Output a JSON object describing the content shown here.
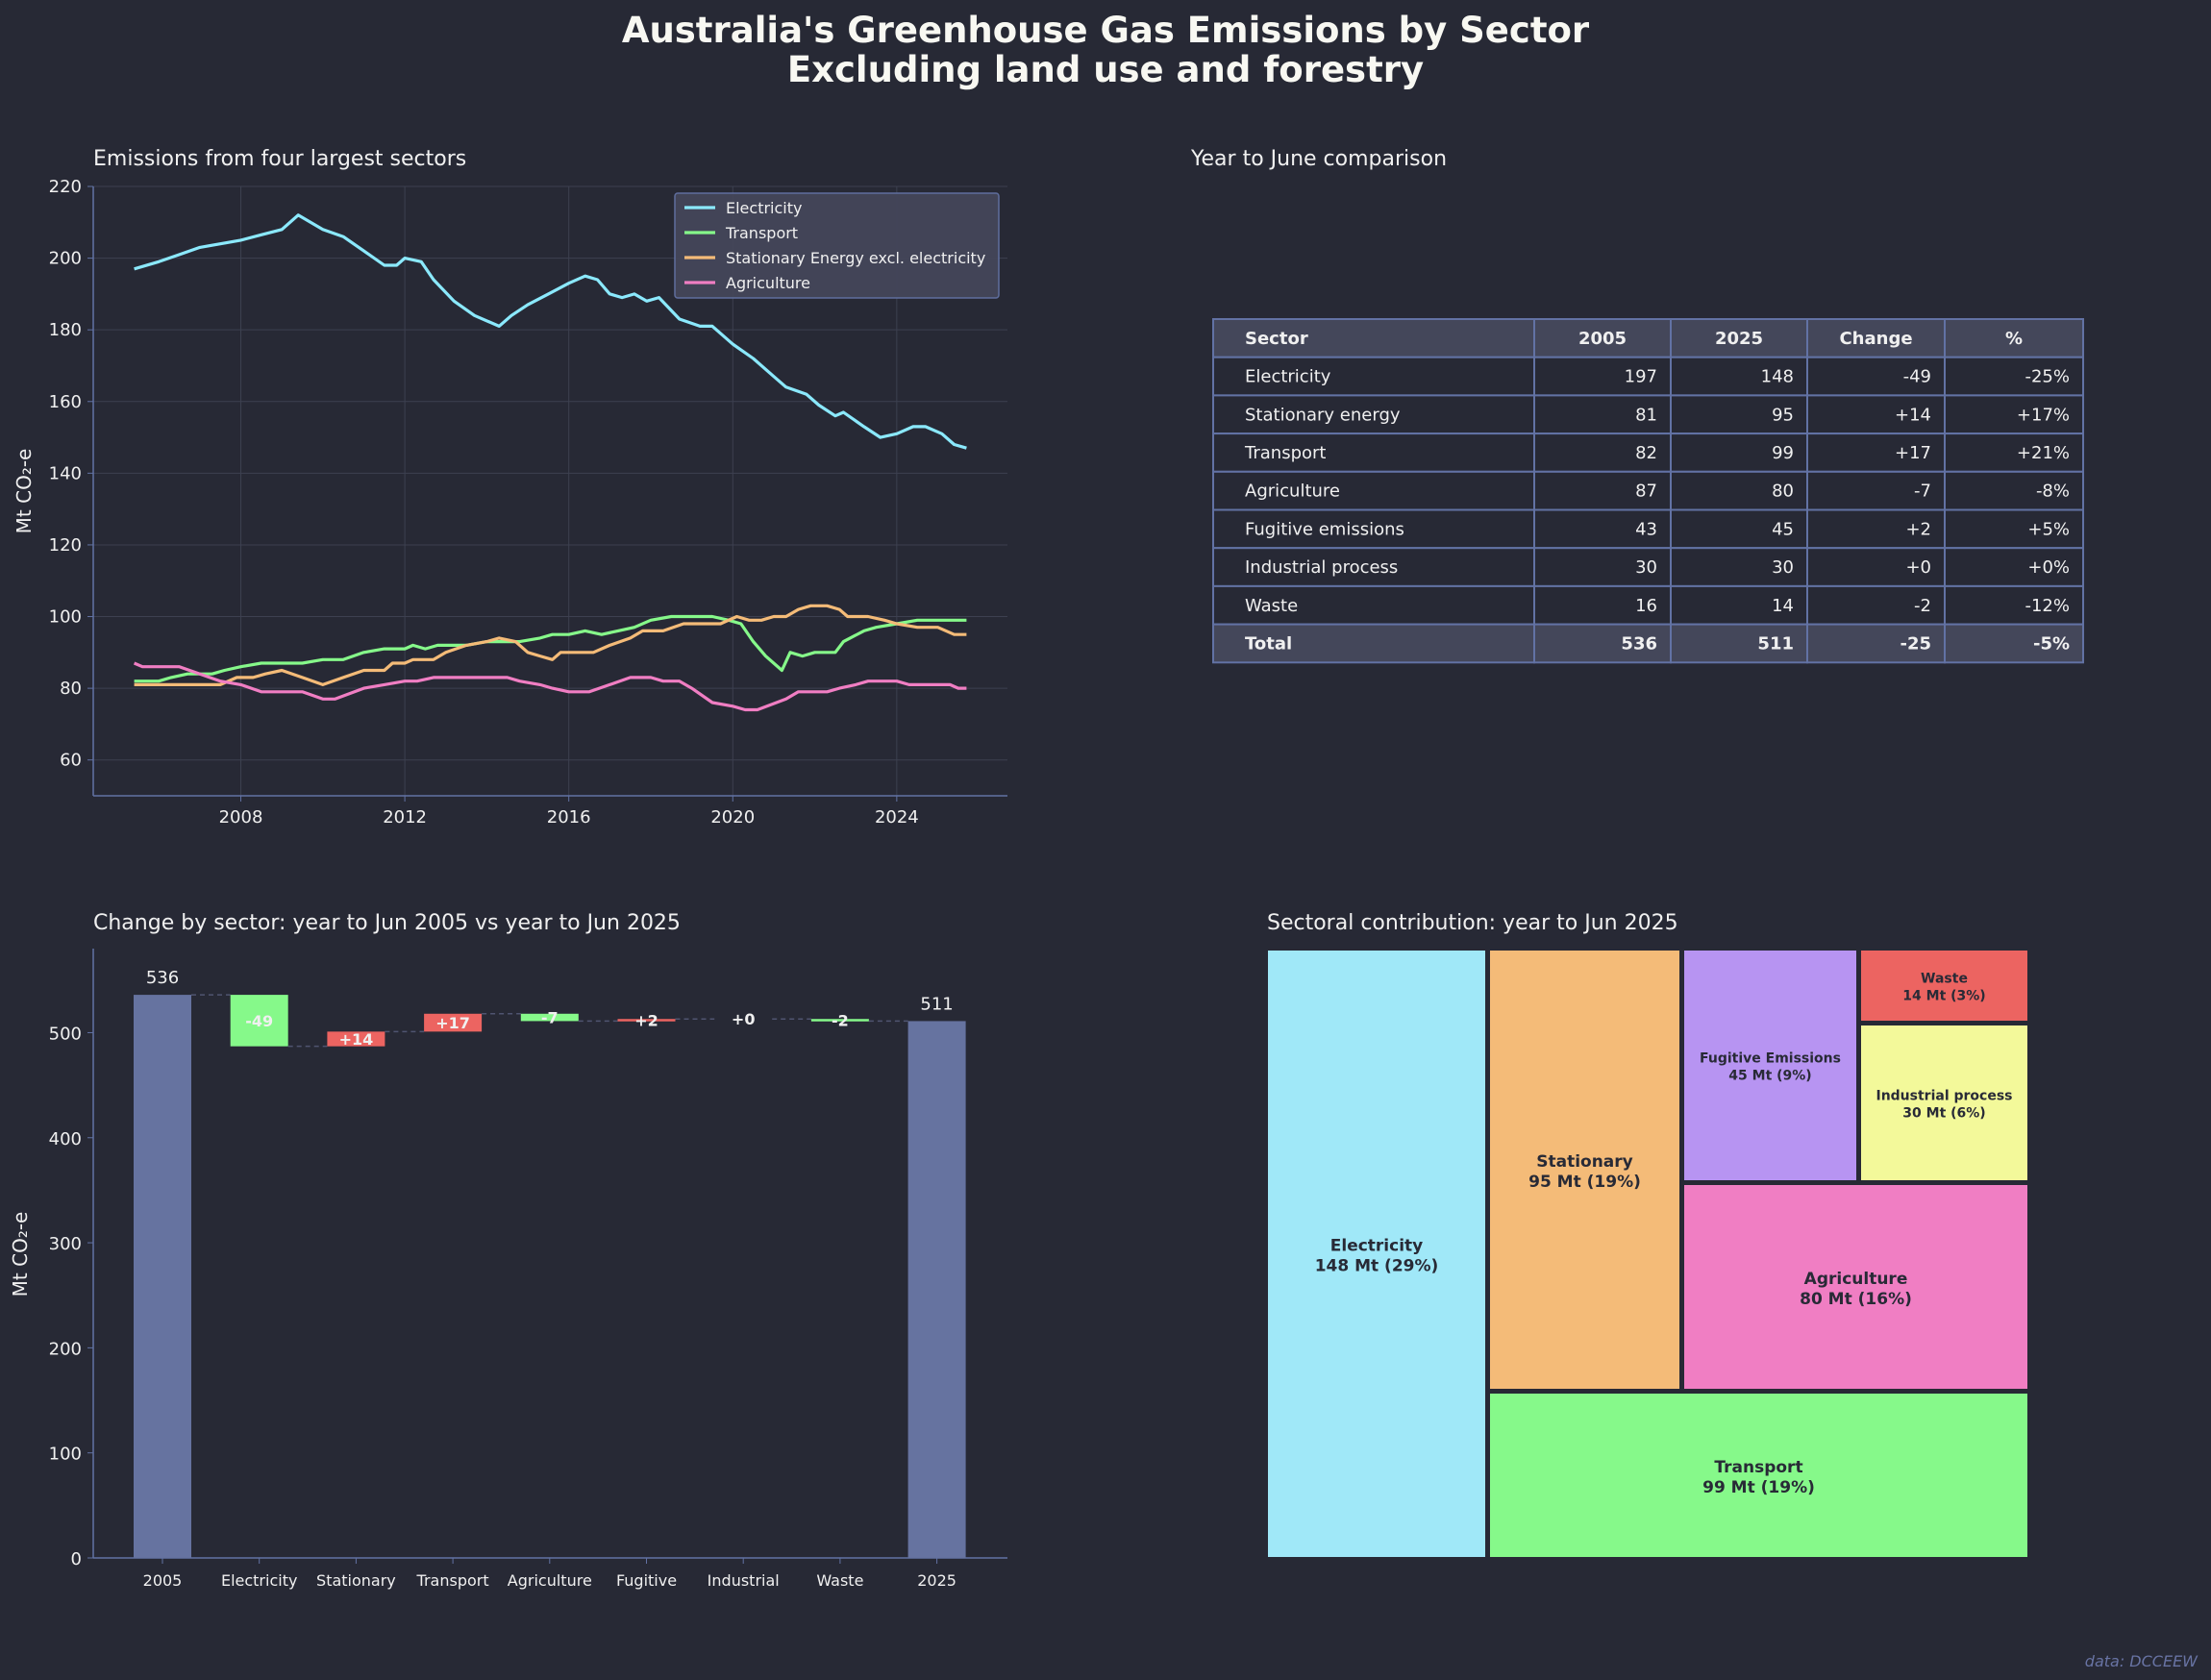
{
  "title": {
    "line1": "Australia's Greenhouse Gas Emissions by Sector",
    "line2": "Excluding land use and forestry"
  },
  "credit": "data: DCCEEW",
  "colors": {
    "background": "#272935",
    "electricity": "#8be9fd",
    "transport": "#86f98a",
    "stationary": "#f4bb78",
    "agriculture": "#f07ec3",
    "fugitive": "#b794f2",
    "waste": "#ec6461",
    "industrial": "#f3f99a",
    "total_bar": "#6673a0",
    "increase": "#ec6461",
    "decrease": "#86f98a",
    "axis": "#6272a4",
    "grid": "#3d4050"
  },
  "chart_data": [
    {
      "type": "line",
      "title": "Emissions from four largest sectors",
      "ylabel": "Mt CO₂-e",
      "xlabel": "",
      "xlim": [
        2004.4,
        2026.7
      ],
      "ylim": [
        50,
        220
      ],
      "xticks": [
        2008,
        2012,
        2016,
        2020,
        2024
      ],
      "yticks": [
        60,
        80,
        100,
        120,
        140,
        160,
        180,
        200,
        220
      ],
      "grid": true,
      "legend": "top-right",
      "series": [
        {
          "name": "Electricity",
          "color": "#8be9fd",
          "points": [
            [
              2005.4,
              197
            ],
            [
              2006,
              199
            ],
            [
              2006.5,
              201
            ],
            [
              2007,
              203
            ],
            [
              2007.5,
              204
            ],
            [
              2008,
              205
            ],
            [
              2008.5,
              206.5
            ],
            [
              2009,
              208
            ],
            [
              2009.4,
              212
            ],
            [
              2010,
              208
            ],
            [
              2010.5,
              206
            ],
            [
              2011,
              202
            ],
            [
              2011.5,
              198
            ],
            [
              2011.8,
              198
            ],
            [
              2012,
              200
            ],
            [
              2012.4,
              199
            ],
            [
              2012.7,
              194
            ],
            [
              2013.2,
              188
            ],
            [
              2013.7,
              184
            ],
            [
              2014.3,
              181
            ],
            [
              2014.6,
              184
            ],
            [
              2015,
              187
            ],
            [
              2015.5,
              190
            ],
            [
              2016,
              193
            ],
            [
              2016.4,
              195
            ],
            [
              2016.7,
              194
            ],
            [
              2017,
              190
            ],
            [
              2017.3,
              189
            ],
            [
              2017.6,
              190
            ],
            [
              2017.9,
              188
            ],
            [
              2018.2,
              189
            ],
            [
              2018.7,
              183
            ],
            [
              2019.2,
              181
            ],
            [
              2019.5,
              181
            ],
            [
              2020,
              176
            ],
            [
              2020.5,
              172
            ],
            [
              2021,
              167
            ],
            [
              2021.3,
              164
            ],
            [
              2021.8,
              162
            ],
            [
              2022.1,
              159
            ],
            [
              2022.5,
              156
            ],
            [
              2022.7,
              157
            ],
            [
              2023.2,
              153
            ],
            [
              2023.6,
              150
            ],
            [
              2024,
              151
            ],
            [
              2024.4,
              153
            ],
            [
              2024.7,
              153
            ],
            [
              2025.1,
              151
            ],
            [
              2025.4,
              148
            ],
            [
              2025.7,
              147
            ]
          ]
        },
        {
          "name": "Transport",
          "color": "#86f98a",
          "points": [
            [
              2005.4,
              82
            ],
            [
              2006,
              82
            ],
            [
              2006.3,
              83
            ],
            [
              2006.7,
              84
            ],
            [
              2007.3,
              84
            ],
            [
              2007.6,
              85
            ],
            [
              2008,
              86
            ],
            [
              2008.5,
              87
            ],
            [
              2009.5,
              87
            ],
            [
              2010,
              88
            ],
            [
              2010.5,
              88
            ],
            [
              2011,
              90
            ],
            [
              2011.5,
              91
            ],
            [
              2012,
              91
            ],
            [
              2012.2,
              92
            ],
            [
              2012.5,
              91
            ],
            [
              2012.8,
              92
            ],
            [
              2013.5,
              92
            ],
            [
              2014,
              93
            ],
            [
              2014.8,
              93
            ],
            [
              2015.3,
              94
            ],
            [
              2015.6,
              95
            ],
            [
              2016,
              95
            ],
            [
              2016.4,
              96
            ],
            [
              2016.8,
              95
            ],
            [
              2017.2,
              96
            ],
            [
              2017.6,
              97
            ],
            [
              2018,
              99
            ],
            [
              2018.5,
              100
            ],
            [
              2019.5,
              100
            ],
            [
              2019.9,
              99
            ],
            [
              2020.2,
              98
            ],
            [
              2020.5,
              93
            ],
            [
              2020.8,
              89
            ],
            [
              2021.2,
              85
            ],
            [
              2021.4,
              90
            ],
            [
              2021.7,
              89
            ],
            [
              2022,
              90
            ],
            [
              2022.5,
              90
            ],
            [
              2022.7,
              93
            ],
            [
              2023.2,
              96
            ],
            [
              2023.5,
              97
            ],
            [
              2024,
              98
            ],
            [
              2024.5,
              99
            ],
            [
              2025.7,
              99
            ]
          ]
        },
        {
          "name": "Stationary Energy excl. electricity",
          "color": "#f4bb78",
          "points": [
            [
              2005.4,
              81
            ],
            [
              2007.5,
              81
            ],
            [
              2007.9,
              83
            ],
            [
              2008.3,
              83
            ],
            [
              2008.6,
              84
            ],
            [
              2009,
              85
            ],
            [
              2009.5,
              83
            ],
            [
              2010,
              81
            ],
            [
              2010.5,
              83
            ],
            [
              2011,
              85
            ],
            [
              2011.5,
              85
            ],
            [
              2011.7,
              87
            ],
            [
              2012,
              87
            ],
            [
              2012.2,
              88
            ],
            [
              2012.7,
              88
            ],
            [
              2013,
              90
            ],
            [
              2013.5,
              92
            ],
            [
              2014,
              93
            ],
            [
              2014.3,
              94
            ],
            [
              2014.7,
              93
            ],
            [
              2015,
              90
            ],
            [
              2015.3,
              89
            ],
            [
              2015.6,
              88
            ],
            [
              2015.8,
              90
            ],
            [
              2016.6,
              90
            ],
            [
              2017,
              92
            ],
            [
              2017.5,
              94
            ],
            [
              2017.8,
              96
            ],
            [
              2018.3,
              96
            ],
            [
              2018.8,
              98
            ],
            [
              2019.7,
              98
            ],
            [
              2020.1,
              100
            ],
            [
              2020.4,
              99
            ],
            [
              2020.7,
              99
            ],
            [
              2021,
              100
            ],
            [
              2021.3,
              100
            ],
            [
              2021.6,
              102
            ],
            [
              2021.9,
              103
            ],
            [
              2022.3,
              103
            ],
            [
              2022.6,
              102
            ],
            [
              2022.8,
              100
            ],
            [
              2023.3,
              100
            ],
            [
              2023.7,
              99
            ],
            [
              2024,
              98
            ],
            [
              2024.5,
              97
            ],
            [
              2025,
              97
            ],
            [
              2025.4,
              95
            ],
            [
              2025.7,
              95
            ]
          ]
        },
        {
          "name": "Agriculture",
          "color": "#f07ec3",
          "points": [
            [
              2005.4,
              87
            ],
            [
              2005.6,
              86
            ],
            [
              2006.5,
              86
            ],
            [
              2007,
              84
            ],
            [
              2007.5,
              82
            ],
            [
              2008,
              81
            ],
            [
              2008.5,
              79
            ],
            [
              2009.5,
              79
            ],
            [
              2010,
              77
            ],
            [
              2010.3,
              77
            ],
            [
              2011,
              80
            ],
            [
              2011.5,
              81
            ],
            [
              2012,
              82
            ],
            [
              2012.3,
              82
            ],
            [
              2012.7,
              83
            ],
            [
              2014.5,
              83
            ],
            [
              2014.8,
              82
            ],
            [
              2015.3,
              81
            ],
            [
              2015.6,
              80
            ],
            [
              2016,
              79
            ],
            [
              2016.5,
              79
            ],
            [
              2017,
              81
            ],
            [
              2017.5,
              83
            ],
            [
              2018,
              83
            ],
            [
              2018.3,
              82
            ],
            [
              2018.7,
              82
            ],
            [
              2019,
              80
            ],
            [
              2019.5,
              76
            ],
            [
              2020,
              75
            ],
            [
              2020.3,
              74
            ],
            [
              2020.6,
              74
            ],
            [
              2021.3,
              77
            ],
            [
              2021.6,
              79
            ],
            [
              2022.3,
              79
            ],
            [
              2022.6,
              80
            ],
            [
              2023,
              81
            ],
            [
              2023.3,
              82
            ],
            [
              2024,
              82
            ],
            [
              2024.3,
              81
            ],
            [
              2025.3,
              81
            ],
            [
              2025.5,
              80
            ],
            [
              2025.7,
              80
            ]
          ]
        }
      ]
    },
    {
      "type": "table",
      "title": "Year to June comparison",
      "columns": [
        "Sector",
        "2005",
        "2025",
        "Change",
        "%"
      ],
      "rows": [
        [
          "Electricity",
          "197",
          "148",
          "-49",
          "-25%"
        ],
        [
          "Stationary energy",
          "81",
          "95",
          "+14",
          "+17%"
        ],
        [
          "Transport",
          "82",
          "99",
          "+17",
          "+21%"
        ],
        [
          "Agriculture",
          "87",
          "80",
          "-7",
          "-8%"
        ],
        [
          "Fugitive emissions",
          "43",
          "45",
          "+2",
          "+5%"
        ],
        [
          "Industrial process",
          "30",
          "30",
          "+0",
          "+0%"
        ],
        [
          "Waste",
          "16",
          "14",
          "-2",
          "-12%"
        ]
      ],
      "total": [
        "Total",
        "536",
        "511",
        "-25",
        "-5%"
      ]
    },
    {
      "type": "bar",
      "subtype": "waterfall",
      "title": "Change by sector: year to Jun 2005 vs year to Jun 2025",
      "ylabel": "Mt CO₂-e",
      "xlabel": "",
      "ylim": [
        0,
        580
      ],
      "yticks": [
        0,
        100,
        200,
        300,
        400,
        500
      ],
      "categories": [
        "2005",
        "Electricity",
        "Stationary",
        "Transport",
        "Agriculture",
        "Fugitive",
        "Industrial",
        "Waste",
        "2025"
      ],
      "start_total": 536,
      "changes": [
        -49,
        14,
        17,
        -7,
        2,
        0,
        -2
      ],
      "end_total": 511,
      "labels": [
        "536",
        "-49",
        "+14",
        "+17",
        "-7",
        "+2",
        "+0",
        "-2",
        "511"
      ]
    },
    {
      "type": "treemap",
      "title": "Sectoral contribution: year to Jun 2025",
      "items": [
        {
          "name": "Electricity",
          "value": 148,
          "label": "148 Mt (29%)",
          "color": "#a0e8f8"
        },
        {
          "name": "Stationary",
          "value": 95,
          "label": "95 Mt (19%)",
          "color": "#f4bb78"
        },
        {
          "name": "Transport",
          "value": 99,
          "label": "99 Mt (19%)",
          "color": "#86f98a"
        },
        {
          "name": "Fugitive Emissions",
          "value": 45,
          "label": "45 Mt (9%)",
          "color": "#b794f2"
        },
        {
          "name": "Waste",
          "value": 14,
          "label": "14 Mt (3%)",
          "color": "#ec6461"
        },
        {
          "name": "Industrial process",
          "value": 30,
          "label": "30 Mt (6%)",
          "color": "#f3f99a"
        },
        {
          "name": "Agriculture",
          "value": 80,
          "label": "80 Mt (16%)",
          "color": "#f07ec3"
        }
      ]
    }
  ]
}
